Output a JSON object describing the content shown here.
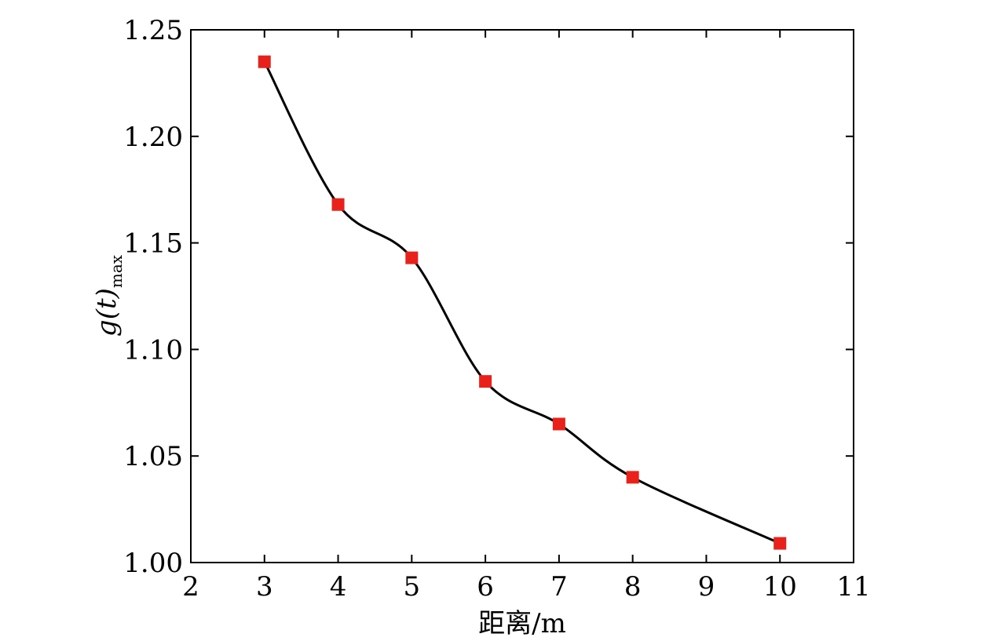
{
  "chart_data": {
    "type": "line",
    "title": "",
    "xlabel": "距离/m",
    "ylabel": {
      "main": "g(t)",
      "sub": "max"
    },
    "xlim": [
      2,
      11
    ],
    "ylim": [
      1.0,
      1.25
    ],
    "xticks": [
      "2",
      "3",
      "4",
      "5",
      "6",
      "7",
      "8",
      "9",
      "10",
      "11"
    ],
    "yticks": [
      "1.00",
      "1.05",
      "1.10",
      "1.15",
      "1.20",
      "1.25"
    ],
    "grid": false,
    "legend": "none",
    "series": [
      {
        "x": [
          3,
          4,
          5,
          6,
          7,
          8,
          10
        ],
        "y": [
          1.235,
          1.168,
          1.143,
          1.085,
          1.065,
          1.04,
          1.009
        ],
        "line_color": "#000000",
        "marker_color": "#e8221b",
        "marker": "square",
        "smooth": true
      }
    ]
  }
}
